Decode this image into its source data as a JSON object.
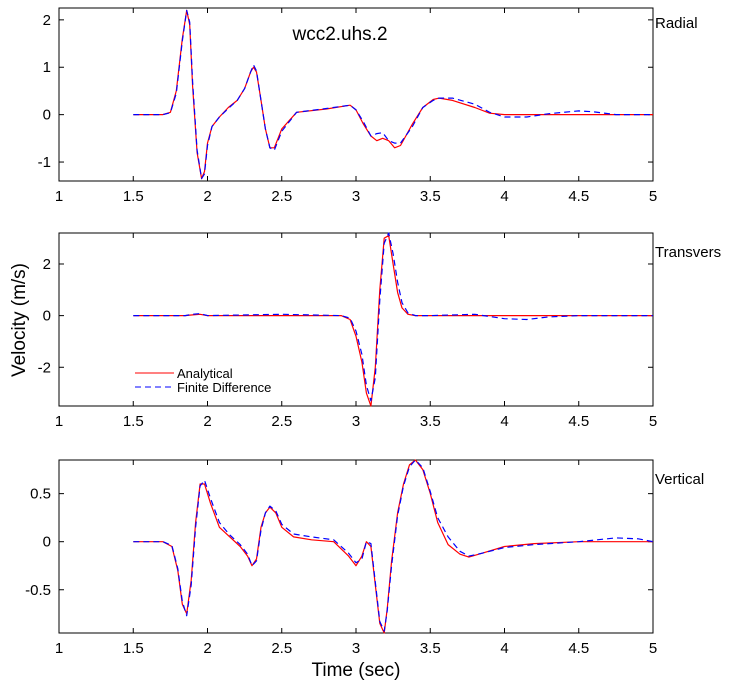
{
  "figure": {
    "ylabel": "Velocity (m/s)",
    "xlabel": "Time (sec)",
    "legend": {
      "position": "lower-left",
      "entries": [
        {
          "label": "Analytical",
          "style": "solid",
          "color": "#ff0000"
        },
        {
          "label": "Finite Difference",
          "style": "dashed",
          "color": "#0000ff"
        }
      ]
    },
    "colors": {
      "analytical": "#ff0000",
      "finite_difference": "#0000ff",
      "axes": "#000000",
      "background": "#ffffff"
    }
  },
  "chart_data": [
    {
      "type": "line",
      "title": "wcc2.uhs.2",
      "component": "Radial",
      "xlim": [
        1,
        5
      ],
      "ylim": [
        -1.4,
        2.25
      ],
      "xticks": [
        "1",
        "1.5",
        "2",
        "2.5",
        "3",
        "3.5",
        "4",
        "4.5",
        "5"
      ],
      "yticks": [
        {
          "value": 2,
          "label": "2"
        },
        {
          "value": 1,
          "label": "1"
        },
        {
          "value": 0,
          "label": "0"
        },
        {
          "value": -1,
          "label": "-1"
        }
      ],
      "series": [
        {
          "name": "Analytical",
          "color": "#ff0000",
          "dash": "solid",
          "x": [
            1.5,
            1.7,
            1.75,
            1.79,
            1.83,
            1.86,
            1.88,
            1.9,
            1.93,
            1.96,
            1.98,
            2.0,
            2.03,
            2.08,
            2.14,
            2.2,
            2.25,
            2.29,
            2.31,
            2.33,
            2.36,
            2.39,
            2.42,
            2.45,
            2.5,
            2.6,
            2.8,
            2.96,
            3.0,
            3.05,
            3.1,
            3.14,
            3.18,
            3.22,
            3.26,
            3.3,
            3.38,
            3.45,
            3.52,
            3.56,
            3.65,
            3.8,
            3.9,
            4.0,
            4.2,
            4.5,
            5.0
          ],
          "y": [
            0,
            0,
            0.05,
            0.5,
            1.6,
            2.2,
            1.9,
            0.6,
            -0.8,
            -1.35,
            -1.2,
            -0.6,
            -0.25,
            -0.05,
            0.15,
            0.3,
            0.55,
            0.9,
            1.0,
            0.9,
            0.3,
            -0.3,
            -0.7,
            -0.7,
            -0.3,
            0.05,
            0.12,
            0.2,
            0.1,
            -0.2,
            -0.45,
            -0.55,
            -0.5,
            -0.55,
            -0.7,
            -0.65,
            -0.2,
            0.15,
            0.32,
            0.35,
            0.3,
            0.15,
            0.03,
            0.0,
            0.0,
            0.0,
            0.0
          ]
        },
        {
          "name": "Finite Difference",
          "color": "#0000ff",
          "dash": "dashed",
          "x": [
            1.5,
            1.7,
            1.75,
            1.79,
            1.83,
            1.86,
            1.88,
            1.9,
            1.93,
            1.96,
            1.98,
            2.0,
            2.03,
            2.08,
            2.14,
            2.2,
            2.25,
            2.29,
            2.31,
            2.33,
            2.36,
            2.39,
            2.42,
            2.45,
            2.5,
            2.6,
            2.8,
            2.96,
            3.0,
            3.05,
            3.1,
            3.14,
            3.18,
            3.22,
            3.26,
            3.3,
            3.38,
            3.45,
            3.52,
            3.56,
            3.65,
            3.8,
            3.9,
            4.0,
            4.15,
            4.3,
            4.5,
            4.6,
            4.75,
            5.0
          ],
          "y": [
            0,
            0,
            0.04,
            0.45,
            1.55,
            2.2,
            1.95,
            0.7,
            -0.75,
            -1.35,
            -1.25,
            -0.65,
            -0.25,
            -0.05,
            0.13,
            0.3,
            0.55,
            0.9,
            1.05,
            0.92,
            0.3,
            -0.3,
            -0.7,
            -0.75,
            -0.35,
            0.05,
            0.13,
            0.2,
            0.1,
            -0.15,
            -0.45,
            -0.4,
            -0.38,
            -0.55,
            -0.6,
            -0.6,
            -0.25,
            0.15,
            0.3,
            0.35,
            0.35,
            0.22,
            0.05,
            -0.05,
            -0.05,
            0.02,
            0.08,
            0.06,
            0.0,
            0.0
          ]
        }
      ]
    },
    {
      "type": "line",
      "component": "Transvers",
      "xlim": [
        1,
        5
      ],
      "ylim": [
        -3.5,
        3.2
      ],
      "xticks": [
        "1",
        "1.5",
        "2",
        "2.5",
        "3",
        "3.5",
        "4",
        "4.5",
        "5"
      ],
      "yticks": [
        {
          "value": 2,
          "label": "2"
        },
        {
          "value": 0,
          "label": "0"
        },
        {
          "value": -2,
          "label": "-2"
        }
      ],
      "series": [
        {
          "name": "Analytical",
          "color": "#ff0000",
          "dash": "solid",
          "x": [
            1.5,
            1.85,
            1.9,
            1.95,
            2.0,
            2.5,
            2.9,
            2.96,
            3.0,
            3.04,
            3.07,
            3.1,
            3.13,
            3.16,
            3.19,
            3.22,
            3.25,
            3.28,
            3.31,
            3.35,
            3.4,
            3.5,
            4.0,
            5.0
          ],
          "y": [
            0,
            0,
            0.03,
            0.05,
            0.0,
            0.0,
            0.0,
            -0.15,
            -0.8,
            -1.8,
            -3.0,
            -3.5,
            -2.0,
            1.0,
            3.0,
            3.1,
            2.0,
            0.9,
            0.3,
            0.05,
            0.0,
            0.0,
            0.0,
            0.0
          ]
        },
        {
          "name": "Finite Difference",
          "color": "#0000ff",
          "dash": "dashed",
          "x": [
            1.5,
            1.85,
            1.9,
            1.95,
            2.0,
            2.5,
            2.9,
            2.96,
            3.0,
            3.04,
            3.07,
            3.1,
            3.13,
            3.16,
            3.19,
            3.22,
            3.25,
            3.28,
            3.31,
            3.35,
            3.4,
            3.5,
            3.8,
            4.0,
            4.15,
            4.3,
            4.5,
            5.0
          ],
          "y": [
            0,
            0,
            0.05,
            0.08,
            0.0,
            0.05,
            0.0,
            -0.1,
            -0.6,
            -1.5,
            -2.7,
            -3.3,
            -2.4,
            0.6,
            2.8,
            3.2,
            2.4,
            1.3,
            0.5,
            0.1,
            0.0,
            0.0,
            0.05,
            -0.12,
            -0.15,
            -0.05,
            0.0,
            0.0
          ]
        }
      ]
    },
    {
      "type": "line",
      "component": "Vertical",
      "xlim": [
        1,
        5
      ],
      "ylim": [
        -0.95,
        0.85
      ],
      "xticks": [
        "1",
        "1.5",
        "2",
        "2.5",
        "3",
        "3.5",
        "4",
        "4.5",
        "5"
      ],
      "yticks": [
        {
          "value": 0.5,
          "label": "0.5"
        },
        {
          "value": 0,
          "label": "0"
        },
        {
          "value": -0.5,
          "label": "-0.5"
        }
      ],
      "series": [
        {
          "name": "Analytical",
          "color": "#ff0000",
          "dash": "solid",
          "x": [
            1.5,
            1.7,
            1.76,
            1.8,
            1.83,
            1.86,
            1.89,
            1.92,
            1.95,
            1.98,
            2.02,
            2.08,
            2.15,
            2.22,
            2.27,
            2.3,
            2.33,
            2.36,
            2.39,
            2.42,
            2.46,
            2.5,
            2.58,
            2.7,
            2.85,
            2.95,
            3.0,
            3.04,
            3.07,
            3.1,
            3.13,
            3.16,
            3.19,
            3.21,
            3.24,
            3.28,
            3.32,
            3.36,
            3.4,
            3.45,
            3.5,
            3.55,
            3.62,
            3.7,
            3.76,
            3.85,
            4.0,
            4.2,
            4.5,
            5.0
          ],
          "y": [
            0,
            0,
            -0.05,
            -0.3,
            -0.65,
            -0.75,
            -0.4,
            0.2,
            0.6,
            0.6,
            0.4,
            0.15,
            0.05,
            -0.05,
            -0.15,
            -0.25,
            -0.18,
            0.15,
            0.3,
            0.36,
            0.3,
            0.15,
            0.05,
            0.02,
            0.0,
            -0.15,
            -0.25,
            -0.15,
            0.0,
            -0.05,
            -0.45,
            -0.85,
            -0.95,
            -0.7,
            -0.2,
            0.3,
            0.6,
            0.8,
            0.85,
            0.75,
            0.5,
            0.2,
            -0.03,
            -0.13,
            -0.16,
            -0.12,
            -0.05,
            -0.02,
            0.0,
            0.0
          ]
        },
        {
          "name": "Finite Difference",
          "color": "#0000ff",
          "dash": "dashed",
          "x": [
            1.5,
            1.7,
            1.76,
            1.8,
            1.83,
            1.86,
            1.89,
            1.92,
            1.95,
            1.98,
            2.02,
            2.08,
            2.15,
            2.22,
            2.27,
            2.3,
            2.33,
            2.36,
            2.39,
            2.42,
            2.46,
            2.5,
            2.58,
            2.7,
            2.85,
            2.95,
            3.0,
            3.04,
            3.07,
            3.1,
            3.13,
            3.16,
            3.19,
            3.21,
            3.24,
            3.28,
            3.32,
            3.36,
            3.4,
            3.45,
            3.5,
            3.55,
            3.62,
            3.7,
            3.76,
            3.85,
            4.0,
            4.2,
            4.5,
            4.75,
            4.9,
            5.0
          ],
          "y": [
            0,
            0,
            -0.04,
            -0.28,
            -0.62,
            -0.77,
            -0.45,
            0.15,
            0.58,
            0.64,
            0.45,
            0.2,
            0.07,
            -0.03,
            -0.13,
            -0.25,
            -0.2,
            0.12,
            0.3,
            0.37,
            0.32,
            0.18,
            0.08,
            0.05,
            0.02,
            -0.12,
            -0.22,
            -0.18,
            0.0,
            -0.02,
            -0.42,
            -0.83,
            -0.93,
            -0.72,
            -0.25,
            0.27,
            0.58,
            0.78,
            0.85,
            0.77,
            0.52,
            0.25,
            0.05,
            -0.1,
            -0.15,
            -0.12,
            -0.06,
            -0.03,
            0.0,
            0.04,
            0.03,
            0.0
          ]
        }
      ]
    }
  ]
}
